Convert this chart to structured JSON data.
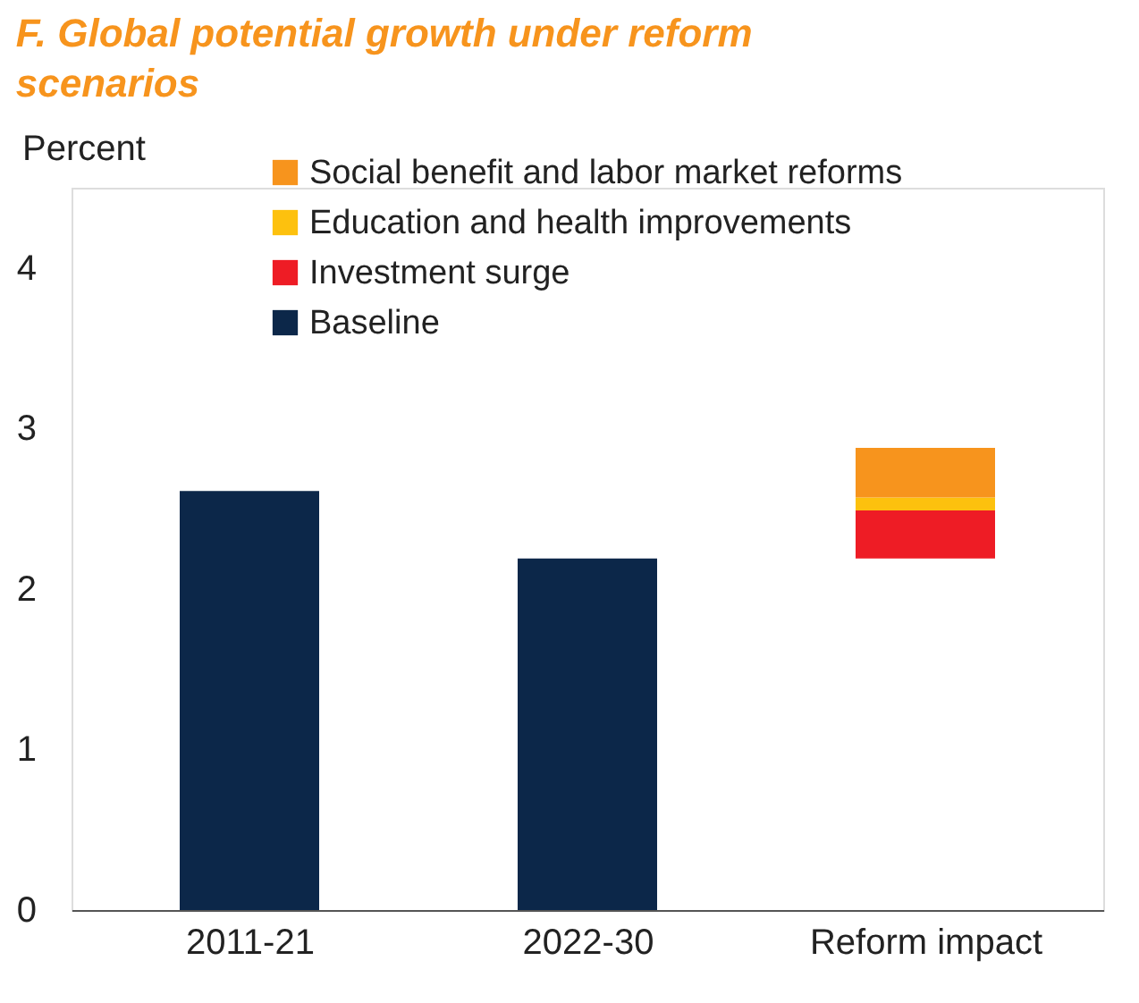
{
  "chart_data": {
    "type": "bar",
    "title": "F. Global potential growth under reform scenarios",
    "ylabel": "Percent",
    "categories": [
      "2011-21",
      "2022-30",
      "Reform impact"
    ],
    "series": [
      {
        "name": "Baseline",
        "color": "#0c2749",
        "values": [
          2.61,
          2.19,
          null
        ]
      },
      {
        "name": "Investment surge",
        "color": "#ee1c25",
        "values": [
          null,
          null,
          0.3
        ],
        "base": [
          null,
          null,
          2.19
        ]
      },
      {
        "name": "Education and health improvements",
        "color": "#fdc10e",
        "values": [
          null,
          null,
          0.08
        ],
        "base": [
          null,
          null,
          2.49
        ]
      },
      {
        "name": "Social benefit and labor market reforms",
        "color": "#f7941d",
        "values": [
          null,
          null,
          0.31
        ],
        "base": [
          null,
          null,
          2.57
        ]
      }
    ],
    "ylim": [
      0,
      4.5
    ],
    "yticks": [
      0,
      1,
      2,
      3,
      4
    ],
    "grid": false,
    "legend": "top"
  }
}
